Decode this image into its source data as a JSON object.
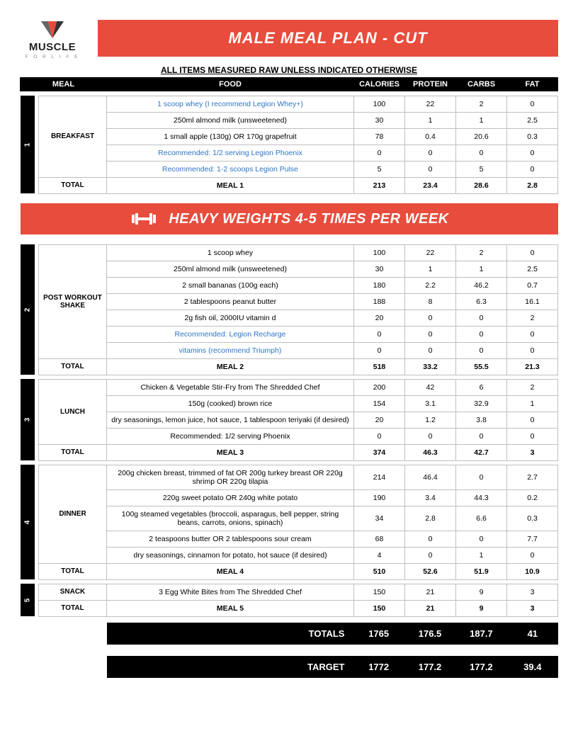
{
  "logo": {
    "brand": "MUSCLE",
    "sub": "F O R   L I F E"
  },
  "title": "MALE MEAL PLAN - CUT",
  "subtitle": "ALL ITEMS MEASURED RAW UNLESS INDICATED OTHERWISE",
  "headers": {
    "meal": "MEAL",
    "food": "FOOD",
    "cal": "CALORIES",
    "pro": "PROTEIN",
    "carb": "CARBS",
    "fat": "FAT"
  },
  "banner": "HEAVY WEIGHTS 4-5 TIMES PER WEEK",
  "colors": {
    "accent": "#e74c3c",
    "black": "#000000",
    "link": "#2e75c4",
    "border": "#bfbfbf",
    "bg": "#ffffff"
  },
  "meals": [
    {
      "num": "1",
      "name": "BREAKFAST",
      "rows": [
        {
          "food": "1 scoop whey (I recommend Legion Whey+)",
          "link": true,
          "cal": "100",
          "pro": "22",
          "carb": "2",
          "fat": "0"
        },
        {
          "food": "250ml almond milk (unsweetened)",
          "cal": "30",
          "pro": "1",
          "carb": "1",
          "fat": "2.5"
        },
        {
          "food": "1 small apple (130g) OR 170g grapefruit",
          "cal": "78",
          "pro": "0.4",
          "carb": "20.6",
          "fat": "0.3"
        },
        {
          "food": "Recommended: 1/2 serving Legion Phoenix",
          "link": true,
          "cal": "0",
          "pro": "0",
          "carb": "0",
          "fat": "0"
        },
        {
          "food": "Recommended: 1-2 scoops Legion Pulse",
          "link": true,
          "cal": "5",
          "pro": "0",
          "carb": "5",
          "fat": "0"
        }
      ],
      "total": {
        "label": "TOTAL",
        "name": "MEAL 1",
        "cal": "213",
        "pro": "23.4",
        "carb": "28.6",
        "fat": "2.8"
      }
    },
    {
      "num": "2",
      "name": "POST WORKOUT SHAKE",
      "rows": [
        {
          "food": "1 scoop whey",
          "cal": "100",
          "pro": "22",
          "carb": "2",
          "fat": "0"
        },
        {
          "food": "250ml almond milk (unsweetened)",
          "cal": "30",
          "pro": "1",
          "carb": "1",
          "fat": "2.5"
        },
        {
          "food": "2 small bananas (100g each)",
          "cal": "180",
          "pro": "2.2",
          "carb": "46.2",
          "fat": "0.7"
        },
        {
          "food": "2 tablespoons peanut butter",
          "cal": "188",
          "pro": "8",
          "carb": "6.3",
          "fat": "16.1"
        },
        {
          "food": "2g fish oil, 2000IU vitamin d",
          "cal": "20",
          "pro": "0",
          "carb": "0",
          "fat": "2"
        },
        {
          "food": "Recommended: Legion Recharge",
          "link": true,
          "cal": "0",
          "pro": "0",
          "carb": "0",
          "fat": "0"
        },
        {
          "food": "vitamins (recommend Triumph)",
          "link": true,
          "cal": "0",
          "pro": "0",
          "carb": "0",
          "fat": "0"
        }
      ],
      "total": {
        "label": "TOTAL",
        "name": "MEAL 2",
        "cal": "518",
        "pro": "33.2",
        "carb": "55.5",
        "fat": "21.3"
      }
    },
    {
      "num": "3",
      "name": "LUNCH",
      "rows": [
        {
          "food": "Chicken & Vegetable Stir-Fry from The Shredded Chef",
          "cal": "200",
          "pro": "42",
          "carb": "6",
          "fat": "2"
        },
        {
          "food": "150g (cooked) brown rice",
          "cal": "154",
          "pro": "3.1",
          "carb": "32.9",
          "fat": "1"
        },
        {
          "food": "dry seasonings, lemon juice, hot sauce, 1 tablespoon teriyaki (if desired)",
          "cal": "20",
          "pro": "1.2",
          "carb": "3.8",
          "fat": "0"
        },
        {
          "food": "Recommended: 1/2 serving Phoenix",
          "cal": "0",
          "pro": "0",
          "carb": "0",
          "fat": "0"
        }
      ],
      "total": {
        "label": "TOTAL",
        "name": "MEAL 3",
        "cal": "374",
        "pro": "46.3",
        "carb": "42.7",
        "fat": "3"
      }
    },
    {
      "num": "4",
      "name": "DINNER",
      "rows": [
        {
          "food": "200g chicken breast, trimmed of fat OR 200g turkey breast OR 220g shrimp OR 220g tilapia",
          "cal": "214",
          "pro": "46.4",
          "carb": "0",
          "fat": "2.7"
        },
        {
          "food": "220g sweet potato OR 240g white potato",
          "cal": "190",
          "pro": "3.4",
          "carb": "44.3",
          "fat": "0.2"
        },
        {
          "food": "100g steamed vegetables (broccoli, asparagus, bell pepper, string beans, carrots, onions, spinach)",
          "cal": "34",
          "pro": "2.8",
          "carb": "6.6",
          "fat": "0.3"
        },
        {
          "food": "2 teaspoons butter OR 2 tablespoons sour cream",
          "cal": "68",
          "pro": "0",
          "carb": "0",
          "fat": "7.7"
        },
        {
          "food": "dry seasonings, cinnamon for potato, hot sauce (if desired)",
          "cal": "4",
          "pro": "0",
          "carb": "1",
          "fat": "0"
        }
      ],
      "total": {
        "label": "TOTAL",
        "name": "MEAL 4",
        "cal": "510",
        "pro": "52.6",
        "carb": "51.9",
        "fat": "10.9"
      }
    },
    {
      "num": "5",
      "name": "SNACK",
      "rows": [
        {
          "food": "3 Egg White Bites from The Shredded Chef",
          "cal": "150",
          "pro": "21",
          "carb": "9",
          "fat": "3"
        }
      ],
      "total": {
        "label": "TOTAL",
        "name": "MEAL 5",
        "cal": "150",
        "pro": "21",
        "carb": "9",
        "fat": "3"
      }
    }
  ],
  "grand": {
    "totals": {
      "label": "TOTALS",
      "cal": "1765",
      "pro": "176.5",
      "carb": "187.7",
      "fat": "41"
    },
    "target": {
      "label": "TARGET",
      "cal": "1772",
      "pro": "177.2",
      "carb": "177.2",
      "fat": "39.4"
    }
  }
}
